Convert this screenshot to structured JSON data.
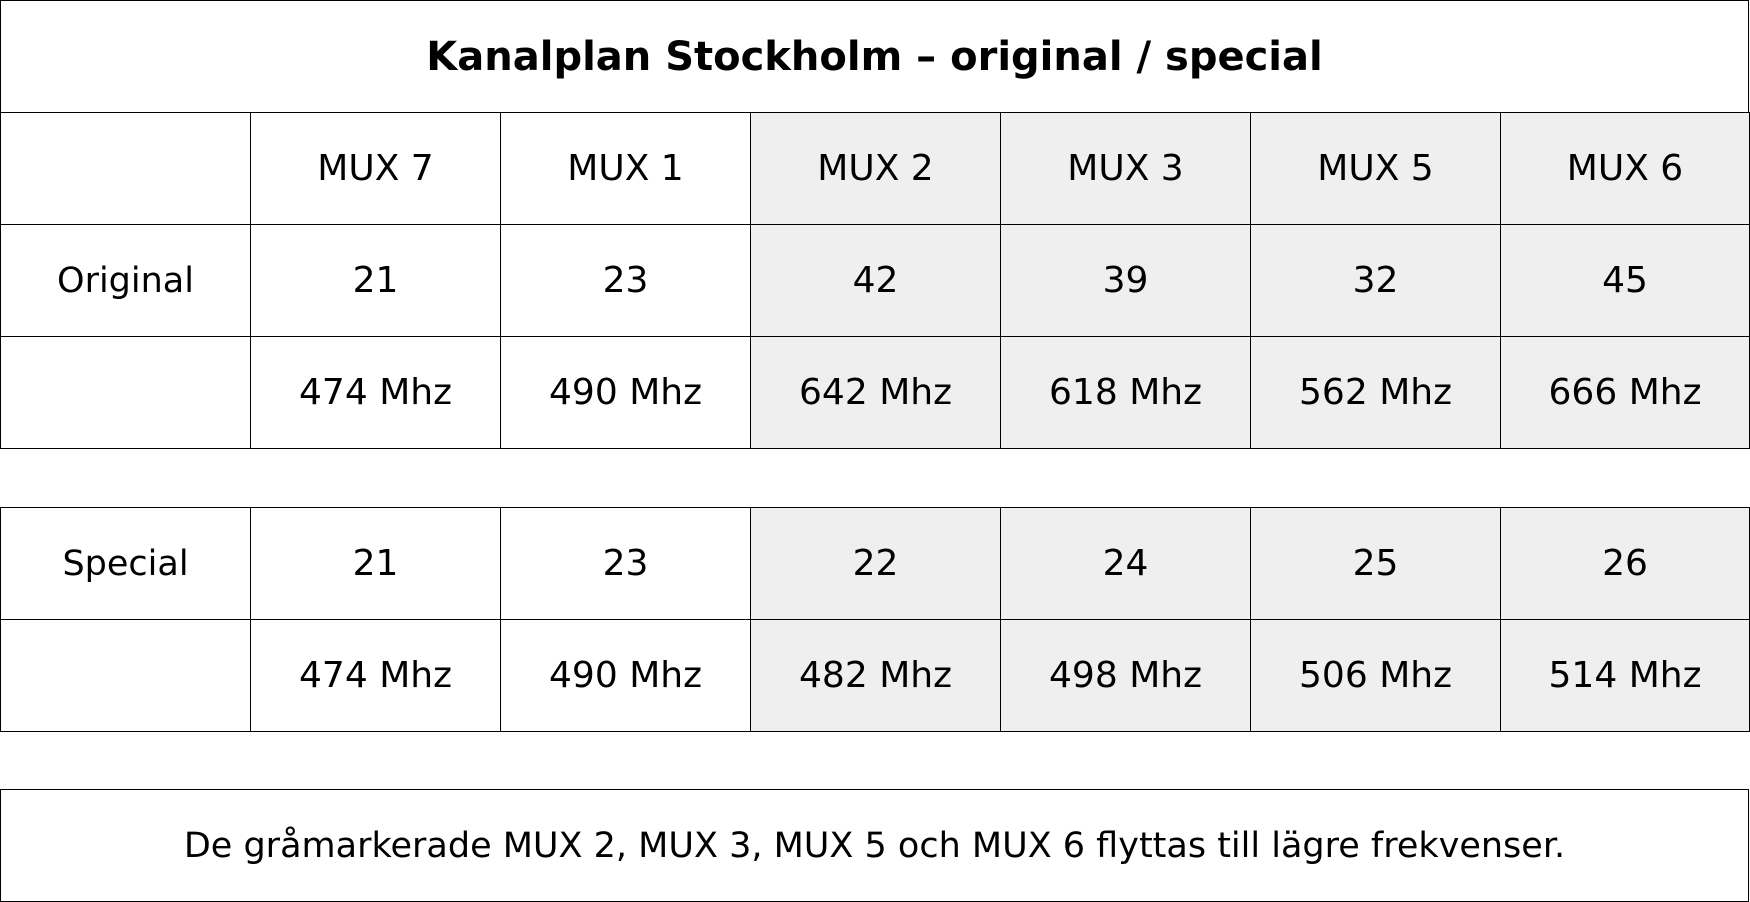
{
  "title": "Kanalplan Stockholm – original / special",
  "mux_headers": [
    "MUX 7",
    "MUX 1",
    "MUX 2",
    "MUX 3",
    "MUX 5",
    "MUX 6"
  ],
  "original": {
    "label": "Original",
    "channels": [
      "21",
      "23",
      "42",
      "39",
      "32",
      "45"
    ],
    "frequencies": [
      "474 Mhz",
      "490 Mhz",
      "642 Mhz",
      "618 Mhz",
      "562 Mhz",
      "666 Mhz"
    ]
  },
  "special": {
    "label": "Special",
    "channels": [
      "21",
      "23",
      "22",
      "24",
      "25",
      "26"
    ],
    "frequencies": [
      "474 Mhz",
      "490 Mhz",
      "482 Mhz",
      "498 Mhz",
      "506 Mhz",
      "514 Mhz"
    ]
  },
  "shaded_mux": [
    "MUX 2",
    "MUX 3",
    "MUX 5",
    "MUX 6"
  ],
  "colors": {
    "shade": "#efefef",
    "border": "#000000"
  },
  "note": "De gråmarkerade MUX 2, MUX 3, MUX 5 och MUX 6 flyttas till lägre frekvenser."
}
